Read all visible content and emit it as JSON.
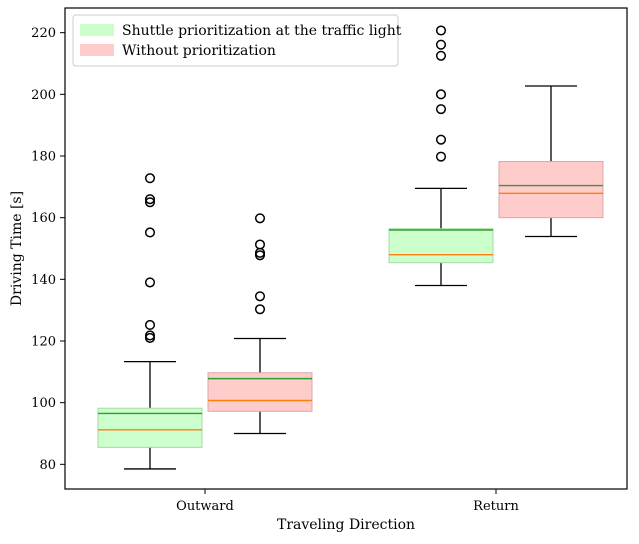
{
  "chart_data": {
    "type": "boxplot",
    "title": "",
    "xlabel": "Traveling Direction",
    "ylabel": "Driving Time [s]",
    "categories": [
      "Outward",
      "Return"
    ],
    "ylim": [
      72,
      228
    ],
    "yticks": [
      80,
      100,
      120,
      140,
      160,
      180,
      200,
      220
    ],
    "legend_position": "top-left",
    "series": [
      {
        "name": "Shuttle prioritization at the traffic light",
        "fill_color": "#ccffcc",
        "edge_color": "#a8d8a8",
        "boxes": [
          {
            "category": "Outward",
            "whisker_low": 78.5,
            "q1": 85.5,
            "median": 91.2,
            "mean": 96.5,
            "q3": 98.2,
            "whisker_high": 113.3,
            "fliers": [
              121.0,
              121.8,
              125.2,
              139.0,
              155.2,
              165.0,
              166.0,
              172.8
            ]
          },
          {
            "category": "Return",
            "whisker_low": 138.0,
            "q1": 145.4,
            "median": 148.0,
            "mean": 156.0,
            "q3": 156.4,
            "whisker_high": 169.5,
            "fliers": [
              179.8,
              185.3,
              195.2,
              200.0,
              212.5,
              216.1,
              220.7
            ]
          }
        ]
      },
      {
        "name": "Without prioritization",
        "fill_color": "#ffcccc",
        "edge_color": "#d8a8a8",
        "boxes": [
          {
            "category": "Outward",
            "whisker_low": 90.0,
            "q1": 97.2,
            "median": 100.7,
            "mean": 107.8,
            "q3": 109.7,
            "whisker_high": 120.8,
            "fliers": [
              130.3,
              134.5,
              147.8,
              148.6,
              151.3,
              159.8
            ]
          },
          {
            "category": "Return",
            "whisker_low": 153.9,
            "q1": 160.0,
            "median": 167.9,
            "mean": 170.4,
            "q3": 178.2,
            "whisker_high": 202.7,
            "fliers": []
          }
        ]
      }
    ],
    "mean_line_color": "#2ca02c",
    "median_line_color": "#ff7f0e"
  }
}
